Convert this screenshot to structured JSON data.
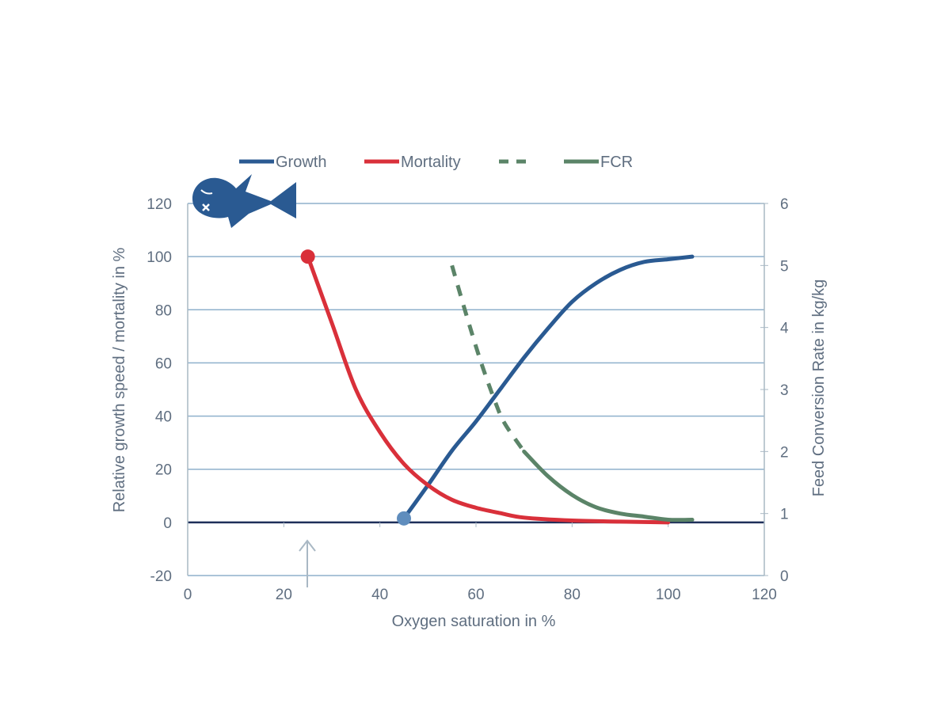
{
  "chart_data": {
    "type": "line",
    "xlabel": "Oxygen saturation in %",
    "ylabel": "Relative growth speed / mortality in %",
    "y2label": "Feed Conversion Rate in kg/kg",
    "xlim": [
      0,
      120
    ],
    "ylim": [
      -20,
      120
    ],
    "y2lim": [
      0,
      6
    ],
    "xticks": [
      "0",
      "20",
      "40",
      "60",
      "80",
      "100",
      "120"
    ],
    "yticks": [
      "-20",
      "0",
      "20",
      "40",
      "60",
      "80",
      "100",
      "120"
    ],
    "y2ticks": [
      "0",
      "1",
      "2",
      "3",
      "4",
      "5",
      "6"
    ],
    "grid": "horizontal",
    "legend_position": "top",
    "legend": [
      {
        "label": "Growth",
        "color": "#2a5a92",
        "style": "solid"
      },
      {
        "label": "Mortality",
        "color": "#d9303a",
        "style": "solid"
      },
      {
        "label": "",
        "color": "#5b8468",
        "style": "dashed"
      },
      {
        "label": "FCR",
        "color": "#5b8468",
        "style": "solid"
      }
    ],
    "series": [
      {
        "name": "Growth",
        "axis": "left",
        "color": "#2a5a92",
        "points": [
          [
            45,
            1.5
          ],
          [
            50,
            14
          ],
          [
            55,
            27
          ],
          [
            60,
            38
          ],
          [
            65,
            50
          ],
          [
            70,
            62
          ],
          [
            75,
            73
          ],
          [
            80,
            83
          ],
          [
            85,
            90
          ],
          [
            90,
            95
          ],
          [
            95,
            98
          ],
          [
            100,
            99
          ],
          [
            105,
            100
          ]
        ],
        "marker_start": true
      },
      {
        "name": "Mortality",
        "axis": "left",
        "color": "#d9303a",
        "points": [
          [
            25,
            100
          ],
          [
            30,
            75
          ],
          [
            35,
            50
          ],
          [
            40,
            34
          ],
          [
            45,
            22
          ],
          [
            50,
            14
          ],
          [
            55,
            8.5
          ],
          [
            60,
            5.5
          ],
          [
            65,
            3.5
          ],
          [
            70,
            1.8
          ],
          [
            80,
            0.7
          ],
          [
            90,
            0.3
          ],
          [
            100,
            0
          ]
        ],
        "marker_start": true
      },
      {
        "name": "FCR",
        "axis": "right",
        "color": "#5b8468",
        "dashed": true,
        "points": [
          [
            55,
            5.0
          ],
          [
            58,
            4.2
          ],
          [
            61,
            3.45
          ],
          [
            64,
            2.8
          ],
          [
            66,
            2.45
          ],
          [
            70,
            2.0
          ]
        ]
      },
      {
        "name": "FCR",
        "axis": "right",
        "color": "#5b8468",
        "points": [
          [
            70,
            2.0
          ],
          [
            75,
            1.6
          ],
          [
            80,
            1.3
          ],
          [
            85,
            1.1
          ],
          [
            90,
            1.0
          ],
          [
            95,
            0.95
          ],
          [
            100,
            0.9
          ],
          [
            105,
            0.9
          ]
        ]
      }
    ],
    "annotation_arrow_x": 25,
    "icon": "dead-fish-icon"
  }
}
